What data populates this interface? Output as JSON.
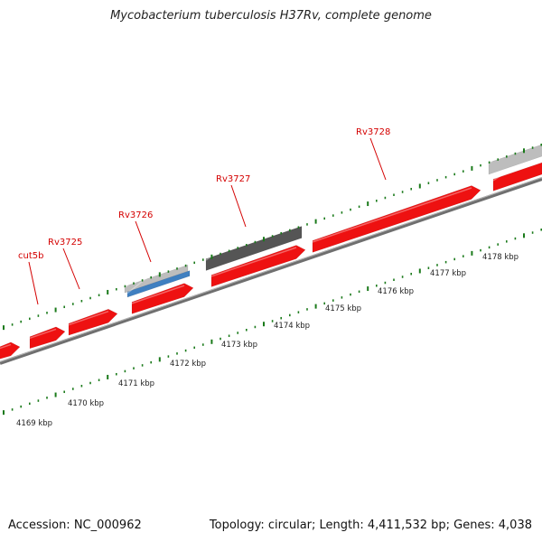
{
  "title": "Mycobacterium tuberculosis H37Rv, complete genome",
  "footer": {
    "accession": "Accession: NC_000962",
    "summary": "Topology: circular; Length: 4,411,532 bp; Genes: 4,038"
  },
  "colors": {
    "forward_gene": "#ee1111",
    "gene_label": "#d40000",
    "backbone": "#888888",
    "tick": "#1a7a1a",
    "gray_feature": "#bdbdbd",
    "dark_feature": "#555555",
    "blue_feature": "#3f7fc0"
  },
  "gene_labels": [
    {
      "name": "cut5b"
    },
    {
      "name": "Rv3725"
    },
    {
      "name": "Rv3726"
    },
    {
      "name": "Rv3727"
    },
    {
      "name": "Rv3728"
    }
  ],
  "kbp_labels": [
    "4169 kbp",
    "4170 kbp",
    "4171 kbp",
    "4172 kbp",
    "4173 kbp",
    "4174 kbp",
    "4175 kbp",
    "4176 kbp",
    "4177 kbp",
    "4178 kbp"
  ]
}
